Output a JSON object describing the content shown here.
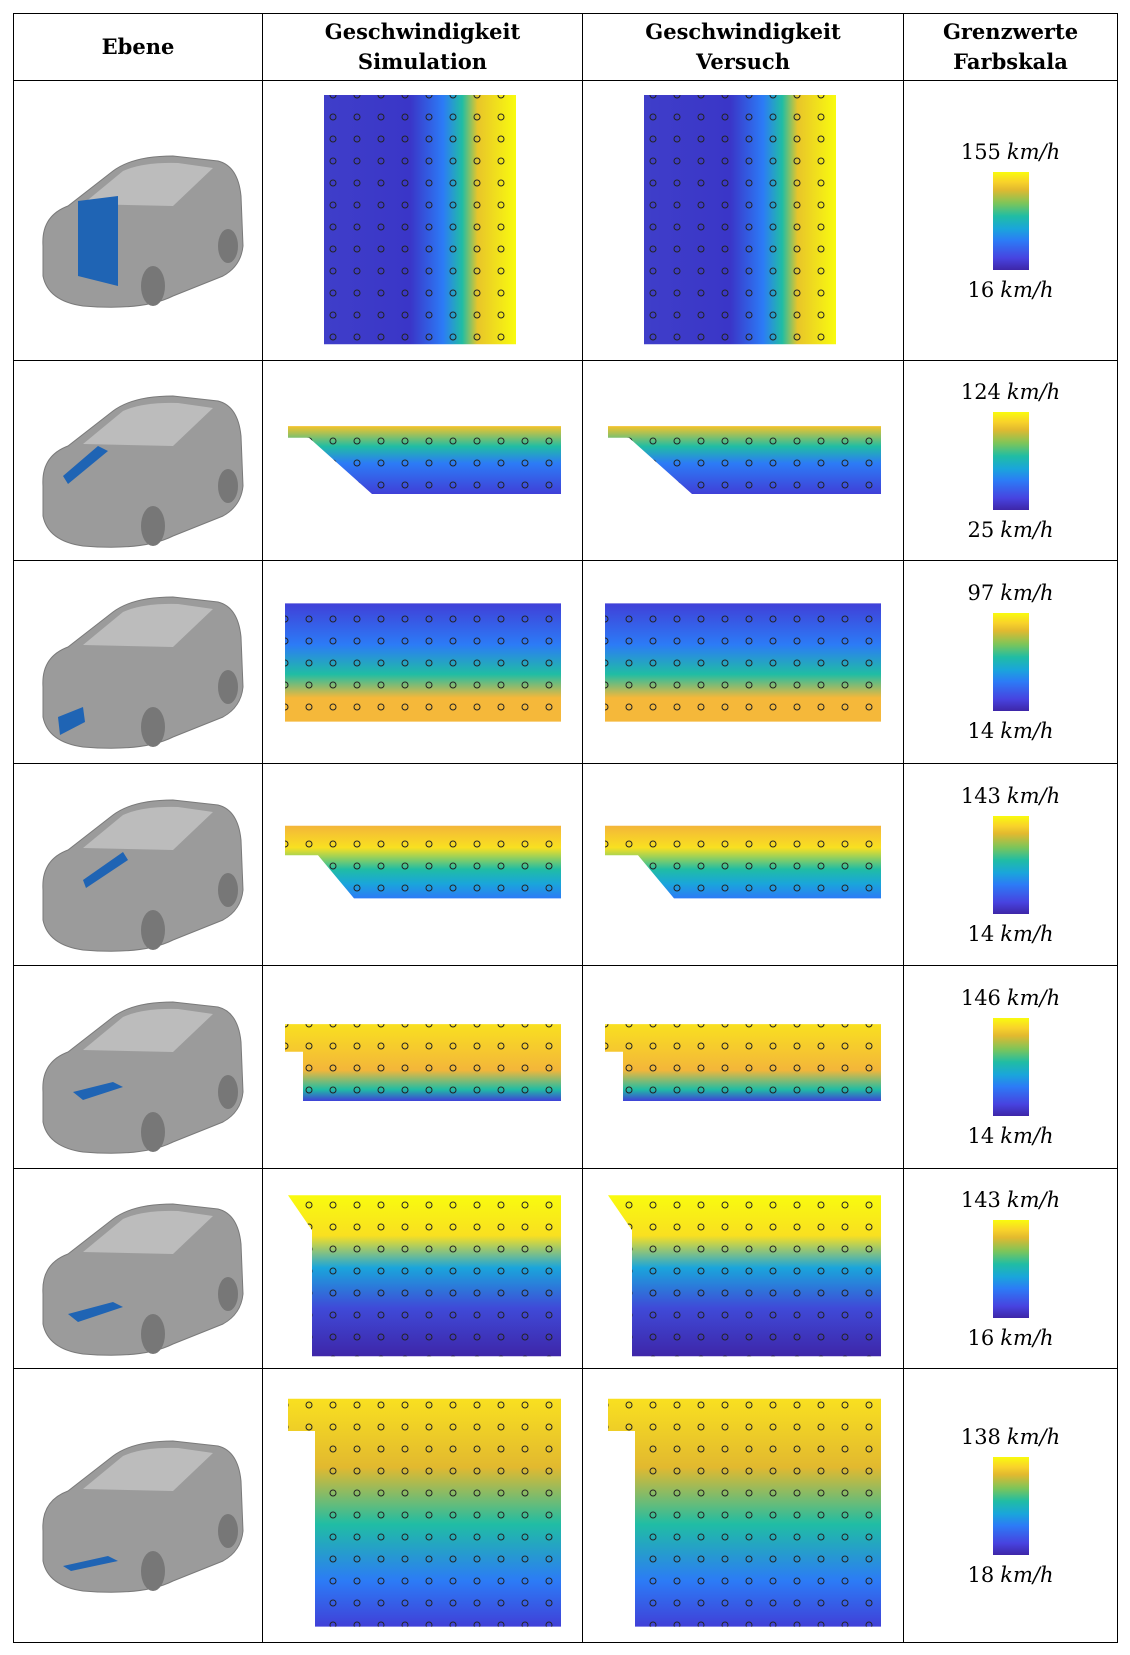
{
  "header": [
    [
      "Ebene"
    ],
    [
      "Geschwindigkeit",
      "Simulation"
    ],
    [
      "Geschwindigkeit",
      "Versuch"
    ],
    [
      "Grenzwerte",
      "Farbskala"
    ]
  ],
  "unit": "km/h",
  "rows": [
    {
      "max": 155,
      "min": 16
    },
    {
      "max": 124,
      "min": 25
    },
    {
      "max": 97,
      "min": 14
    },
    {
      "max": 143,
      "min": 14
    },
    {
      "max": 146,
      "min": 14
    },
    {
      "max": 143,
      "min": 16
    },
    {
      "max": 138,
      "min": 18
    }
  ]
}
